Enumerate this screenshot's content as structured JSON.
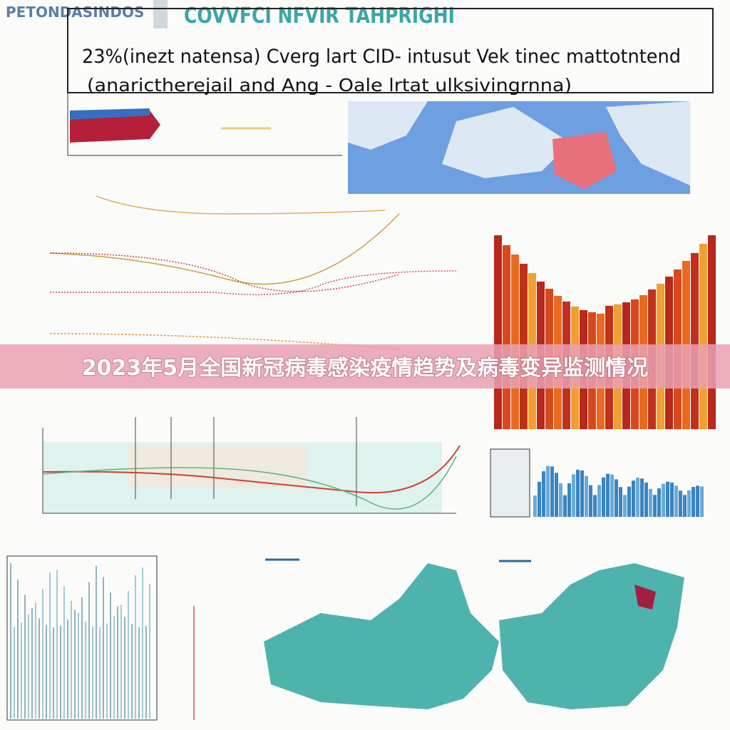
{
  "header": {
    "brand": "PETONDASINDOS",
    "title": "COVVFCI NFVIR TAHPRIGHI",
    "subtitle_line1": "23%(inezt natensa) Cverg lart CID- intusut Vek tinec mattotntend",
    "subtitle_line2": "(anarictherejail and Ang - Oale lrtat ulksivingrnna)"
  },
  "banner": {
    "title": "2023年5月全国新冠病毒感染疫情趋势及病毒变异监测情况"
  }
}
